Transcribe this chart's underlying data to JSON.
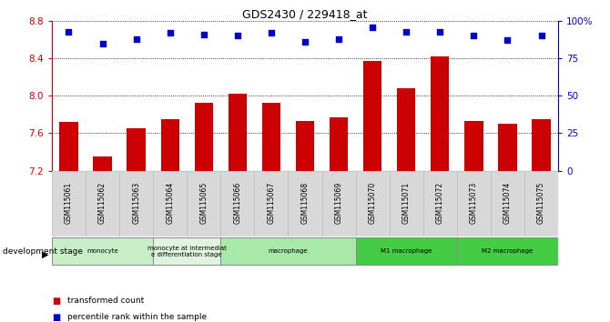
{
  "title": "GDS2430 / 229418_at",
  "samples": [
    "GSM115061",
    "GSM115062",
    "GSM115063",
    "GSM115064",
    "GSM115065",
    "GSM115066",
    "GSM115067",
    "GSM115068",
    "GSM115069",
    "GSM115070",
    "GSM115071",
    "GSM115072",
    "GSM115073",
    "GSM115074",
    "GSM115075"
  ],
  "bar_values": [
    7.72,
    7.35,
    7.65,
    7.75,
    7.93,
    8.02,
    7.93,
    7.73,
    7.77,
    8.37,
    8.08,
    8.42,
    7.73,
    7.7,
    7.75
  ],
  "percentile_values": [
    93,
    85,
    88,
    92,
    91,
    90,
    92,
    86,
    88,
    96,
    93,
    93,
    90,
    87,
    90
  ],
  "bar_color": "#cc0000",
  "percentile_color": "#0000cc",
  "ymin": 7.2,
  "ymax": 8.8,
  "y_ticks": [
    7.2,
    7.6,
    8.0,
    8.4,
    8.8
  ],
  "y2min": 0,
  "y2max": 100,
  "y2_ticks": [
    0,
    25,
    50,
    75,
    100
  ],
  "y2_labels": [
    "0",
    "25",
    "50",
    "75",
    "100%"
  ],
  "groups": [
    {
      "label": "monocyte",
      "start": 0,
      "end": 3,
      "color": "#c8eec8"
    },
    {
      "label": "monocyte at intermediat\ne differentiation stage",
      "start": 3,
      "end": 5,
      "color": "#dff5df"
    },
    {
      "label": "macrophage",
      "start": 5,
      "end": 9,
      "color": "#a8e8a8"
    },
    {
      "label": "M1 macrophage",
      "start": 9,
      "end": 12,
      "color": "#44cc44"
    },
    {
      "label": "M2 macrophage",
      "start": 12,
      "end": 15,
      "color": "#44cc44"
    }
  ],
  "tick_color_left": "#cc0000",
  "tick_color_right": "#0000cc"
}
